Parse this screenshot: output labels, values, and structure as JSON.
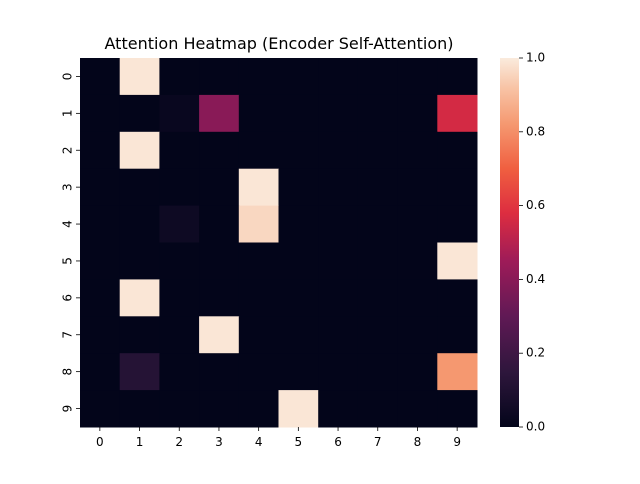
{
  "chart_data": {
    "type": "heatmap",
    "title": "Attention Heatmap (Encoder Self-Attention)",
    "xlabel": "",
    "ylabel": "",
    "x_ticks": [
      "0",
      "1",
      "2",
      "3",
      "4",
      "5",
      "6",
      "7",
      "8",
      "9"
    ],
    "y_ticks": [
      "0",
      "1",
      "2",
      "3",
      "4",
      "5",
      "6",
      "7",
      "8",
      "9"
    ],
    "values": [
      [
        0.0,
        0.99,
        0.0,
        0.0,
        0.0,
        0.0,
        0.0,
        0.0,
        0.0,
        0.0
      ],
      [
        0.0,
        0.0,
        0.02,
        0.4,
        0.0,
        0.0,
        0.0,
        0.0,
        0.0,
        0.56
      ],
      [
        0.0,
        0.99,
        0.0,
        0.0,
        0.0,
        0.0,
        0.0,
        0.0,
        0.0,
        0.0
      ],
      [
        0.0,
        0.0,
        0.0,
        0.0,
        0.99,
        0.0,
        0.0,
        0.0,
        0.0,
        0.0
      ],
      [
        0.0,
        0.0,
        0.04,
        0.0,
        0.96,
        0.0,
        0.0,
        0.0,
        0.0,
        0.0
      ],
      [
        0.0,
        0.0,
        0.0,
        0.0,
        0.0,
        0.0,
        0.0,
        0.0,
        0.0,
        0.99
      ],
      [
        0.0,
        0.99,
        0.0,
        0.0,
        0.0,
        0.0,
        0.0,
        0.0,
        0.0,
        0.0
      ],
      [
        0.0,
        0.0,
        0.0,
        0.99,
        0.0,
        0.0,
        0.0,
        0.0,
        0.0,
        0.0
      ],
      [
        0.0,
        0.12,
        0.0,
        0.0,
        0.0,
        0.0,
        0.0,
        0.0,
        0.0,
        0.82
      ],
      [
        0.0,
        0.0,
        0.0,
        0.0,
        0.0,
        0.99,
        0.0,
        0.0,
        0.0,
        0.0
      ]
    ],
    "colorbar": {
      "range": [
        0.0,
        1.0
      ],
      "ticks": [
        "0.0",
        "0.2",
        "0.4",
        "0.6",
        "0.8",
        "1.0"
      ],
      "colormap": "rocket"
    },
    "grid": false
  }
}
